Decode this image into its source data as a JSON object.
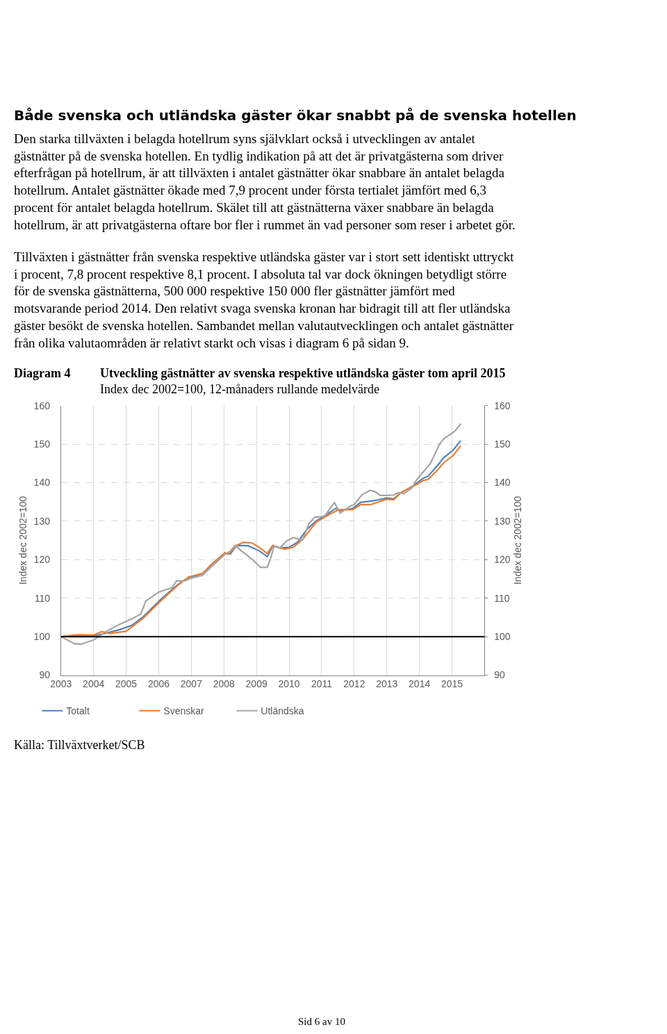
{
  "chart_data": {
    "type": "line",
    "title": "Utveckling gästnätter av svenska respektive utländska gäster tom april 2015",
    "subtitle": "Index dec 2002=100, 12-månaders rullande medelvärde",
    "ylabel": "Index dec 2002=100",
    "y2label": "Index dec 2002=100",
    "annotations": [
      "Både svenska och utländska gäster ökar snabbt på de svenska hotellen",
      "Den starka tillväxten i belagda hotellrum syns självklart också i utvecklingen av antalet\ngästnätter på de svenska hotellen. En tydlig indikation på att det är privatgästerna som driver\nefterfrågan på hotellrum, är att tillväxten i antalet gästnätter ökar snabbare än antalet belagda\nhotellrum. Antalet gästnätter ökade med 7,9 procent under första tertialet jämfört med 6,3\nprocent för antalet belagda hotellrum. Skälet till att gästnätterna växer snabbare än belagda\nhotellrum, är att privatgästerna oftare bor fler i rummet än vad personer som reser i arbetet gör.",
      "Tillväxten i gästnätter från svenska respektive utländska gäster var i stort sett identiskt uttryckt\ni procent, 7,8 procent respektive 8,1 procent. I absoluta tal var dock ökningen betydligt större\nför de svenska gästnätterna, 500 000 respektive 150 000 fler gästnätter jämfört med\nmotsvarande period 2014. Den relativt svaga svenska kronan har bidragit till att fler utländska\ngäster besökt de svenska hotellen. Sambandet mellan valutautvecklingen och antalet gästnätter\nfrån olika valutaområden är relativt starkt och visas i diagram 6 på sidan 9.",
      "Diagram 4",
      "Källa: Tillväxtverket/SCB",
      "Sid 6 av 10"
    ],
    "series": [
      {
        "name": "Totalt",
        "color": "#4f81bd",
        "x": [
          2003.0,
          2004.0,
          2004.33,
          2004.8,
          2005.17,
          2005.5,
          2006.08,
          2006.57,
          2006.92,
          2007.34,
          2007.61,
          2008.03,
          2008.2,
          2008.39,
          2008.74,
          2009.08,
          2009.33,
          2009.5,
          2009.71,
          2010.0,
          2010.27,
          2010.55,
          2010.83,
          2011.1,
          2011.43,
          2011.57,
          2011.95,
          2012.2,
          2012.51,
          2012.72,
          2013.0,
          2013.21,
          2013.42,
          2013.7,
          2013.91,
          2014.12,
          2014.26,
          2014.54,
          2014.75,
          2015.03,
          2015.27
        ],
        "values": [
          100.0,
          100.2,
          100.8,
          101.8,
          102.9,
          105.0,
          109.8,
          113.4,
          115.4,
          116.3,
          118.7,
          121.7,
          121.5,
          123.7,
          123.6,
          122.3,
          120.8,
          123.6,
          123.0,
          123.2,
          124.6,
          127.9,
          130.0,
          131.4,
          133.3,
          132.7,
          133.3,
          134.9,
          135.2,
          135.5,
          136.0,
          135.8,
          137.3,
          138.6,
          139.8,
          141.2,
          141.6,
          144.3,
          146.5,
          148.4,
          150.9
        ]
      },
      {
        "name": "Svenskar",
        "color": "#ed7d31",
        "x": [
          2003.0,
          2003.5,
          2004.0,
          2004.25,
          2004.5,
          2005.0,
          2005.5,
          2006.08,
          2006.57,
          2006.92,
          2007.34,
          2007.61,
          2008.03,
          2008.13,
          2008.39,
          2008.6,
          2008.87,
          2009.08,
          2009.33,
          2009.5,
          2009.86,
          2010.13,
          2010.41,
          2010.83,
          2011.25,
          2011.53,
          2011.95,
          2012.2,
          2012.51,
          2012.72,
          2013.0,
          2013.21,
          2013.42,
          2013.7,
          2013.91,
          2014.12,
          2014.26,
          2014.54,
          2014.75,
          2015.03,
          2015.27
        ],
        "values": [
          100.0,
          100.5,
          100.4,
          101.3,
          100.8,
          101.4,
          104.6,
          109.4,
          113.2,
          115.5,
          116.4,
          118.6,
          121.8,
          121.4,
          123.7,
          124.5,
          124.3,
          123.2,
          121.6,
          123.7,
          122.7,
          123.2,
          125.2,
          129.7,
          131.8,
          133.0,
          133.0,
          134.3,
          134.3,
          134.9,
          135.7,
          135.5,
          137.3,
          138.6,
          139.5,
          140.6,
          140.8,
          143.1,
          145.2,
          147.0,
          149.6
        ]
      },
      {
        "name": "Utländska",
        "color": "#a5a5a5",
        "x": [
          2003.0,
          2003.4,
          2003.6,
          2004.0,
          2004.4,
          2004.8,
          2005.2,
          2005.45,
          2005.6,
          2006.0,
          2006.4,
          2006.55,
          2006.8,
          2007.0,
          2007.34,
          2007.61,
          2008.03,
          2008.18,
          2008.35,
          2008.53,
          2008.81,
          2009.12,
          2009.33,
          2009.44,
          2009.54,
          2009.71,
          2009.93,
          2010.13,
          2010.41,
          2010.62,
          2010.8,
          2010.97,
          2011.1,
          2011.39,
          2011.57,
          2011.88,
          2012.0,
          2012.23,
          2012.48,
          2012.65,
          2012.79,
          2013.0,
          2013.21,
          2013.35,
          2013.52,
          2013.77,
          2013.91,
          2014.12,
          2014.33,
          2014.47,
          2014.61,
          2014.75,
          2014.96,
          2015.1,
          2015.27
        ],
        "values": [
          100.0,
          98.2,
          98.0,
          99.1,
          101.4,
          103.2,
          104.7,
          105.9,
          109.2,
          111.6,
          112.7,
          114.5,
          114.5,
          115.2,
          115.9,
          118.1,
          121.4,
          122.1,
          123.7,
          122.3,
          120.5,
          118.0,
          118.0,
          120.5,
          123.6,
          123.0,
          124.9,
          125.7,
          125.1,
          129.5,
          131.1,
          131.1,
          131.4,
          134.8,
          132.1,
          133.9,
          134.3,
          136.8,
          138.0,
          137.6,
          136.7,
          136.7,
          136.8,
          137.4,
          137.1,
          138.6,
          140.7,
          142.8,
          144.9,
          147.3,
          149.9,
          151.4,
          152.6,
          153.5,
          155.3
        ]
      }
    ],
    "xlim": [
      2003,
      2016
    ],
    "xticks": [
      2003,
      2004,
      2005,
      2006,
      2007,
      2008,
      2009,
      2010,
      2011,
      2012,
      2013,
      2014,
      2015
    ],
    "ylim": [
      90,
      160
    ],
    "yticks": [
      90,
      100,
      110,
      120,
      130,
      140,
      150,
      160
    ],
    "y2lim": [
      90,
      160
    ],
    "y2ticks": [
      90,
      100,
      110,
      120,
      130,
      140,
      150,
      160
    ],
    "ref_lines": [
      {
        "axis": "y",
        "value": 100,
        "color": "#000000"
      }
    ],
    "grid": true,
    "legend": "bottom left",
    "marker": "none",
    "line_style": "solid"
  }
}
